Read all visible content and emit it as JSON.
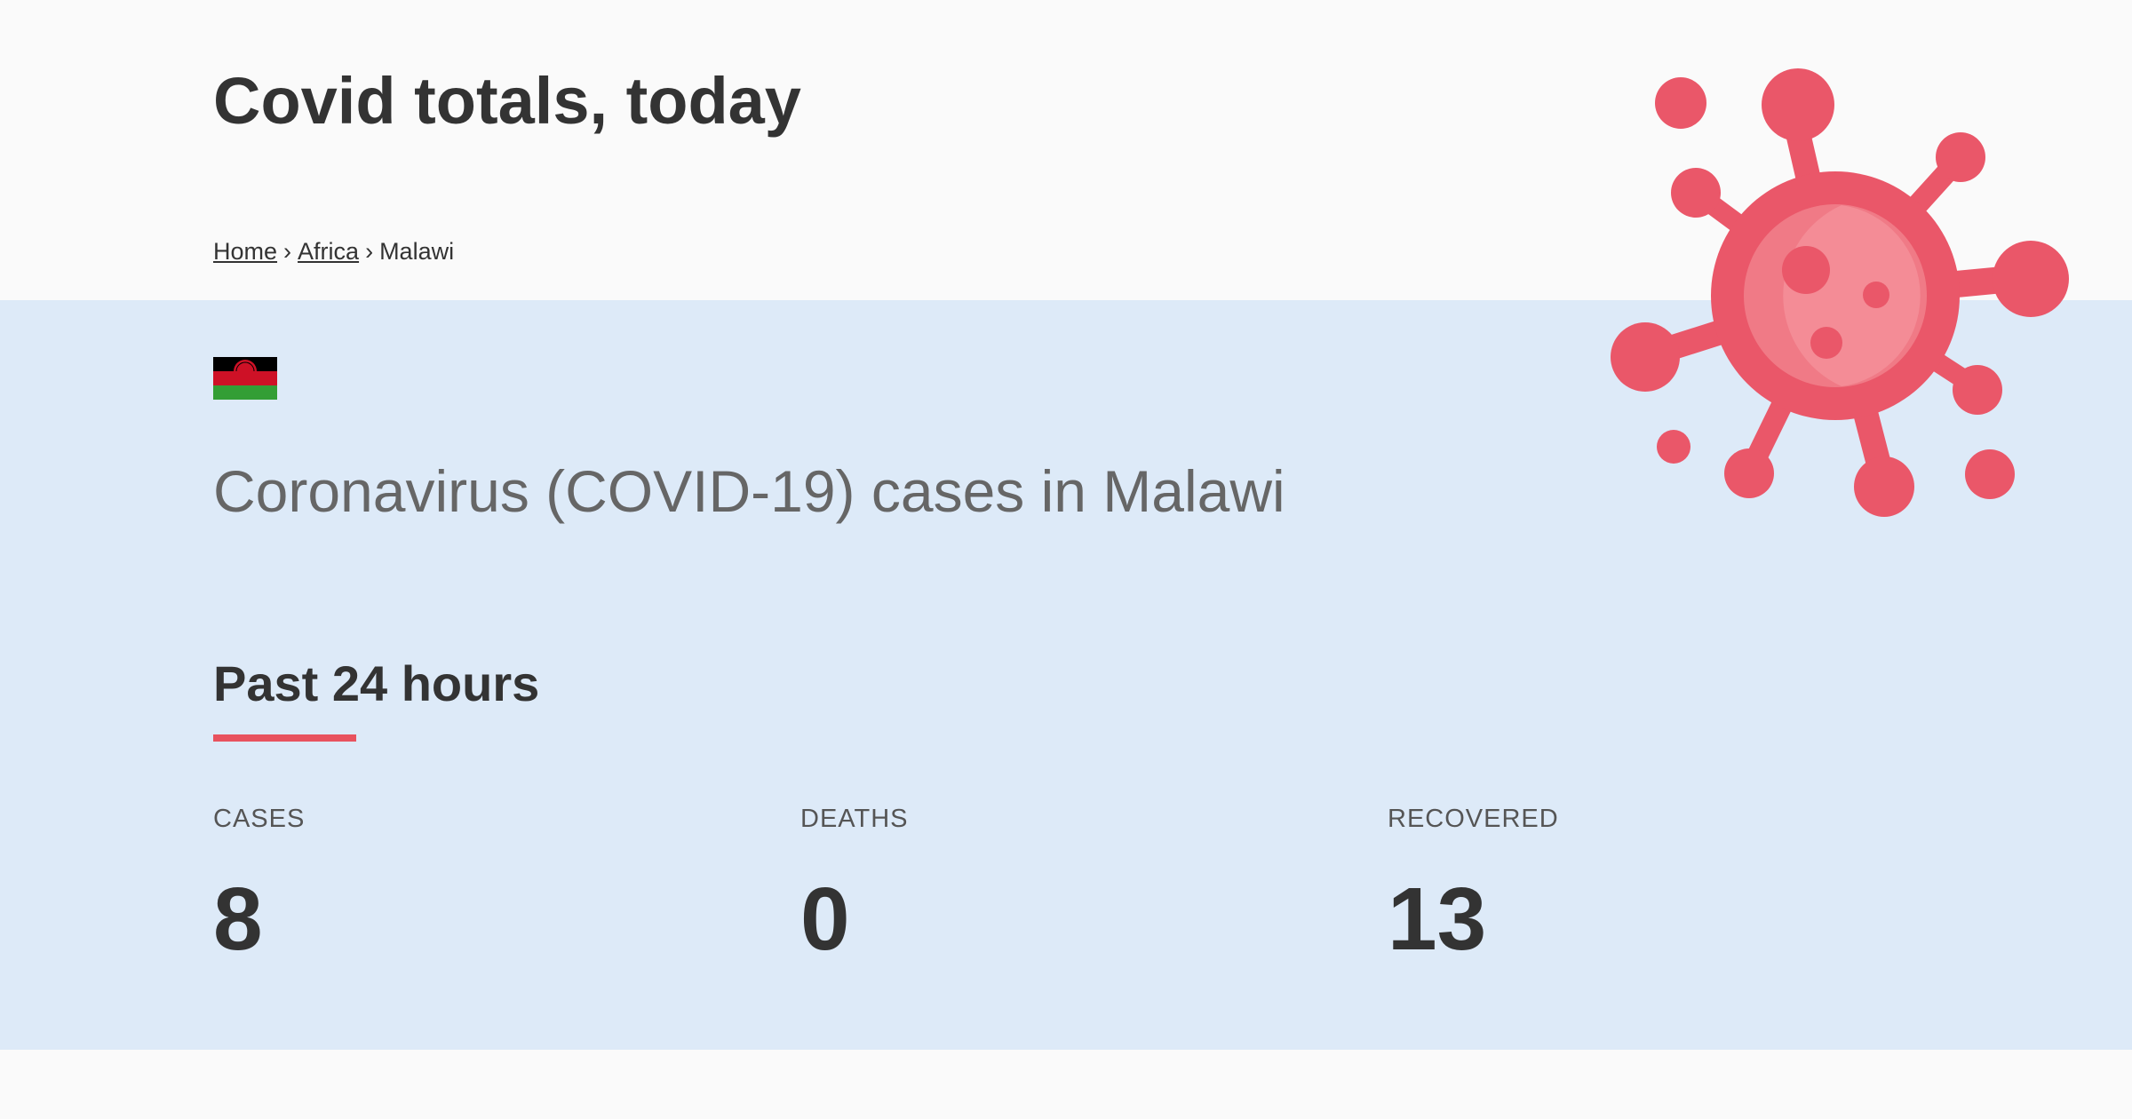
{
  "header": {
    "title": "Covid totals, today"
  },
  "breadcrumb": {
    "items": [
      {
        "label": "Home"
      },
      {
        "label": "Africa"
      },
      {
        "label": "Malawi"
      }
    ],
    "separator": "›"
  },
  "country": {
    "flag_icon": "malawi-flag-icon",
    "heading": "Coronavirus (COVID-19) cases in Malawi"
  },
  "section": {
    "title": "Past 24 hours",
    "accent_color": "#e8525e"
  },
  "stats": {
    "cases": {
      "label": "CASES",
      "value": "8"
    },
    "deaths": {
      "label": "DEATHS",
      "value": "0"
    },
    "recovered": {
      "label": "RECOVERED",
      "value": "13"
    }
  },
  "decoration": {
    "icon": "virus-icon",
    "color": "#ea5769"
  }
}
